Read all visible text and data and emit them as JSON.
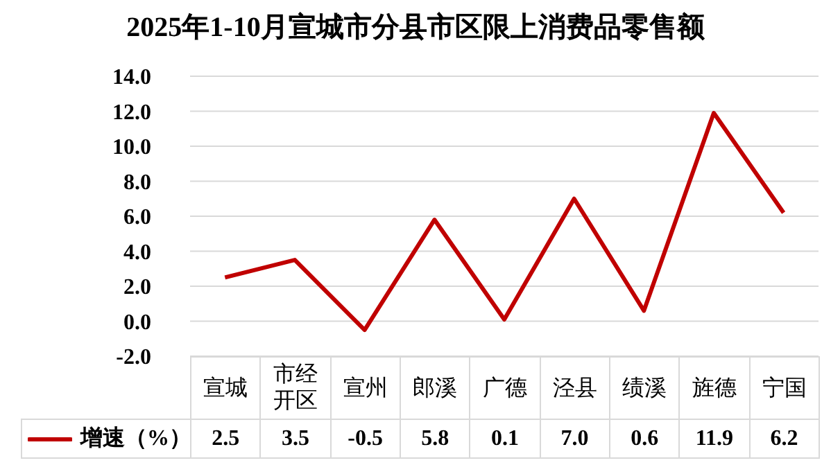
{
  "chart_data": {
    "type": "line",
    "title": "2025年1-10月宣城市分县市区限上消费品零售额",
    "categories": [
      "宣城",
      "市经开区",
      "宣州",
      "郎溪",
      "广德",
      "泾县",
      "绩溪",
      "旌德",
      "宁国"
    ],
    "series": [
      {
        "name": "增速（%）",
        "color": "#c00000",
        "values": [
          2.5,
          3.5,
          -0.5,
          5.8,
          0.1,
          7.0,
          0.6,
          11.9,
          6.2
        ],
        "value_labels": [
          "2.5",
          "3.5",
          "-0.5",
          "5.8",
          "0.1",
          "7.0",
          "0.6",
          "11.9",
          "6.2"
        ]
      }
    ],
    "ylim": [
      -2,
      14
    ],
    "yticks": [
      {
        "value": -2,
        "label": "-2.0"
      },
      {
        "value": 0,
        "label": "0.0"
      },
      {
        "value": 2,
        "label": "2.0"
      },
      {
        "value": 4,
        "label": "4.0"
      },
      {
        "value": 6,
        "label": "6.0"
      },
      {
        "value": 8,
        "label": "8.0"
      },
      {
        "value": 10,
        "label": "10.0"
      },
      {
        "value": 12,
        "label": "12.0"
      },
      {
        "value": 14,
        "label": "14.0"
      }
    ],
    "grid": "y",
    "marker": "none",
    "line_style": "solid",
    "legend": "bottom left"
  }
}
